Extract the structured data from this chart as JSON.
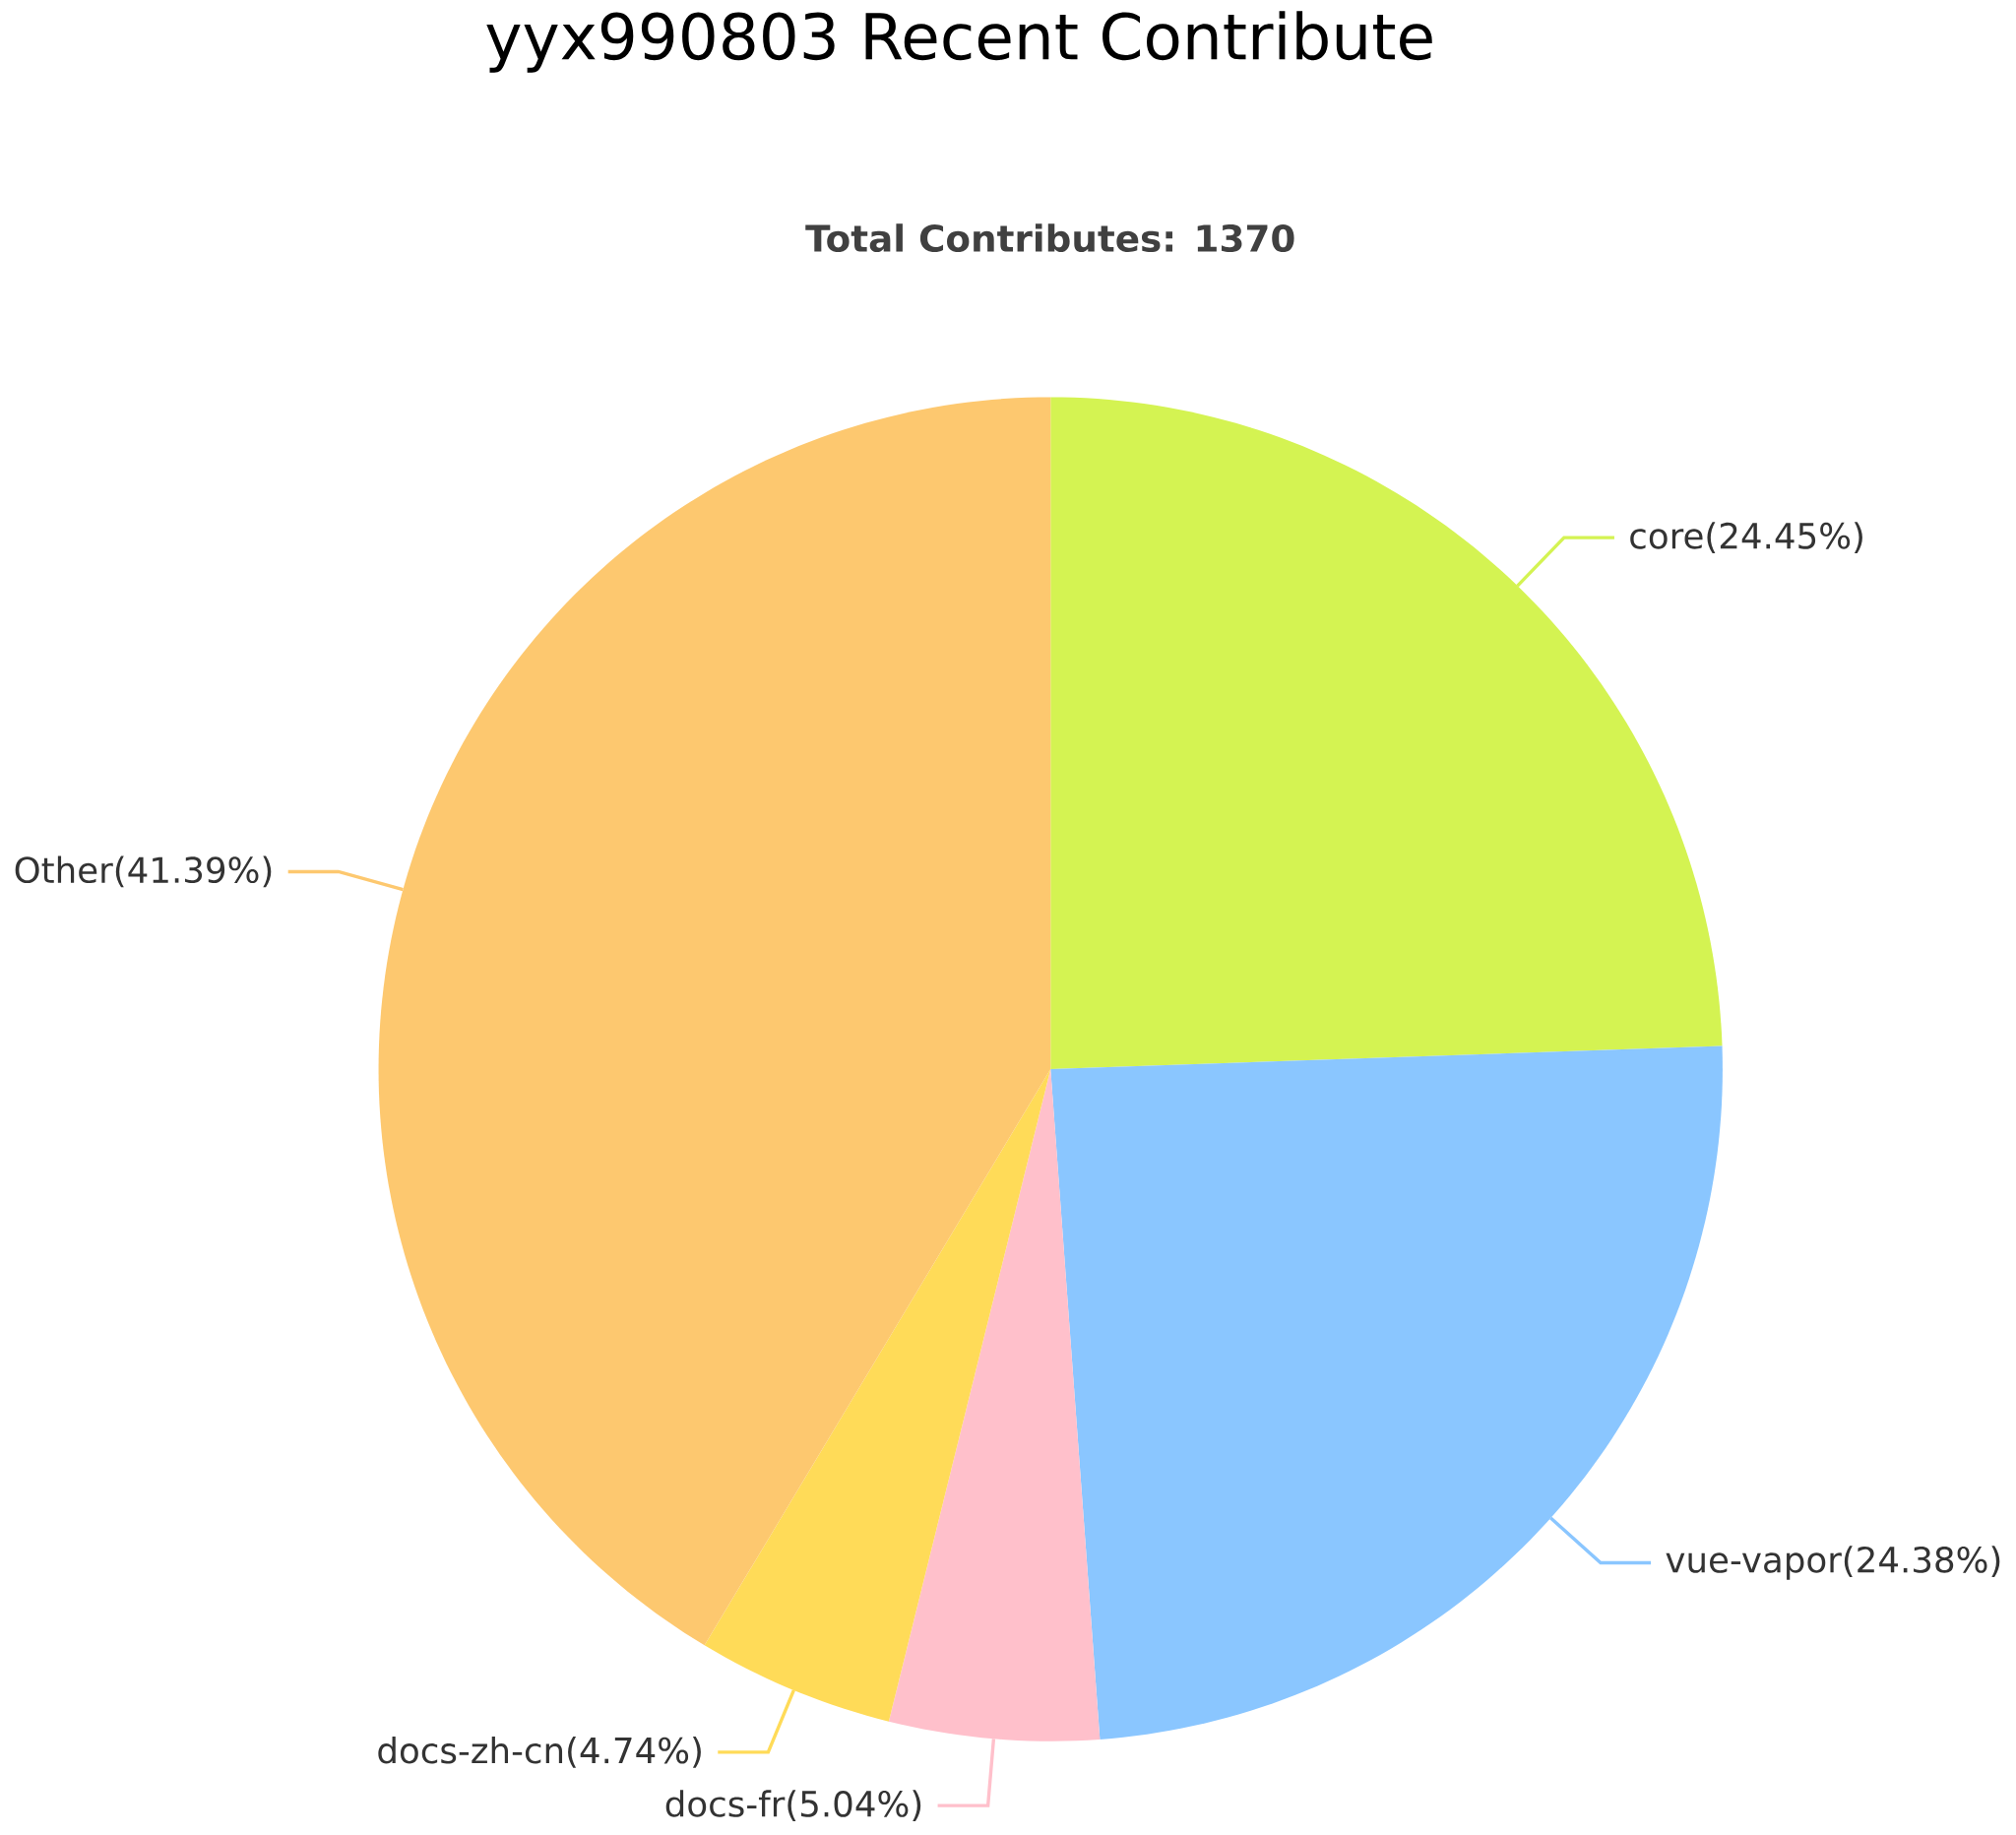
{
  "chart_data": {
    "type": "pie",
    "title": "yyx990803 Recent Contribute",
    "subtitle": "Total Contributes: 1370",
    "categories": [
      "core",
      "vue-vapor",
      "docs-fr",
      "docs-zh-cn",
      "Other"
    ],
    "values": [
      24.45,
      24.38,
      5.04,
      4.74,
      41.39
    ],
    "value_labels": [
      "(24.45%)",
      "(24.38%)",
      "(5.04%)",
      "(4.74%)",
      "(41.39%)"
    ],
    "colors": [
      "#d4f352",
      "#8ac6ff",
      "#ffc0cb",
      "#ffdb58",
      "#fdc86f"
    ]
  }
}
